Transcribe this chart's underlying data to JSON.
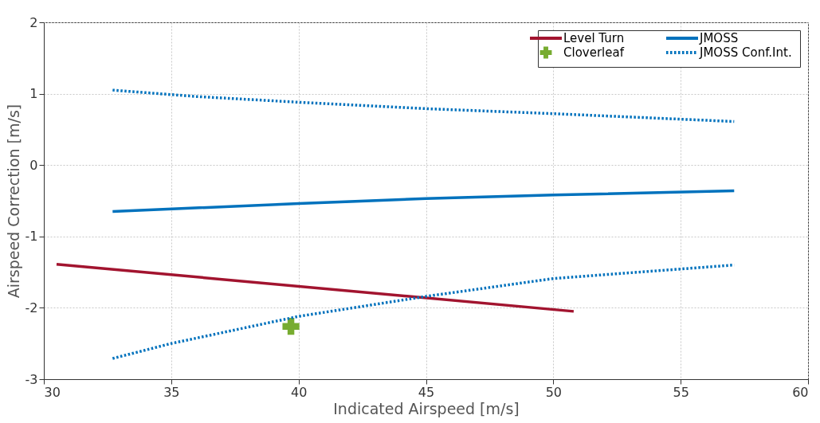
{
  "chart_data": {
    "type": "line",
    "xlabel": "Indicated Airspeed [m/s]",
    "ylabel": "Airspeed Correction [m/s]",
    "xlim": [
      30,
      60
    ],
    "xticks": [
      30,
      35,
      40,
      45,
      50,
      55,
      60
    ],
    "ylim": [
      -3,
      2
    ],
    "yticks": [
      -3,
      -2,
      -1,
      0,
      1,
      2
    ],
    "grid": true,
    "legend": "top right",
    "series": [
      {
        "name": "Level Turn",
        "color": "#a2142f",
        "line_style": "solid",
        "x": [
          30.5,
          50.8
        ],
        "values": [
          -1.39,
          -2.05
        ]
      },
      {
        "name": "JMOSS",
        "color": "#0072bd",
        "line_style": "solid",
        "x": [
          32.7,
          40,
          45,
          50,
          57.1
        ],
        "values": [
          -0.65,
          -0.54,
          -0.47,
          -0.42,
          -0.36
        ]
      },
      {
        "name": "Cloverleaf",
        "type": "scatter",
        "marker": "cross",
        "color": "#77ac30",
        "x": [
          39.7
        ],
        "values": [
          -2.26
        ]
      },
      {
        "name": "JMOSS Conf.Int.",
        "color": "#0072bd",
        "line_style": "dotted",
        "x": [
          32.7,
          36,
          40,
          45,
          50,
          57.1
        ],
        "values": [
          1.05,
          0.96,
          0.88,
          0.79,
          0.72,
          0.61
        ]
      },
      {
        "color": "#0072bd",
        "line_style": "dotted",
        "x": [
          32.7,
          35,
          40,
          45,
          50,
          57.1
        ],
        "values": [
          -2.71,
          -2.5,
          -2.12,
          -1.84,
          -1.59,
          -1.4
        ]
      }
    ]
  }
}
